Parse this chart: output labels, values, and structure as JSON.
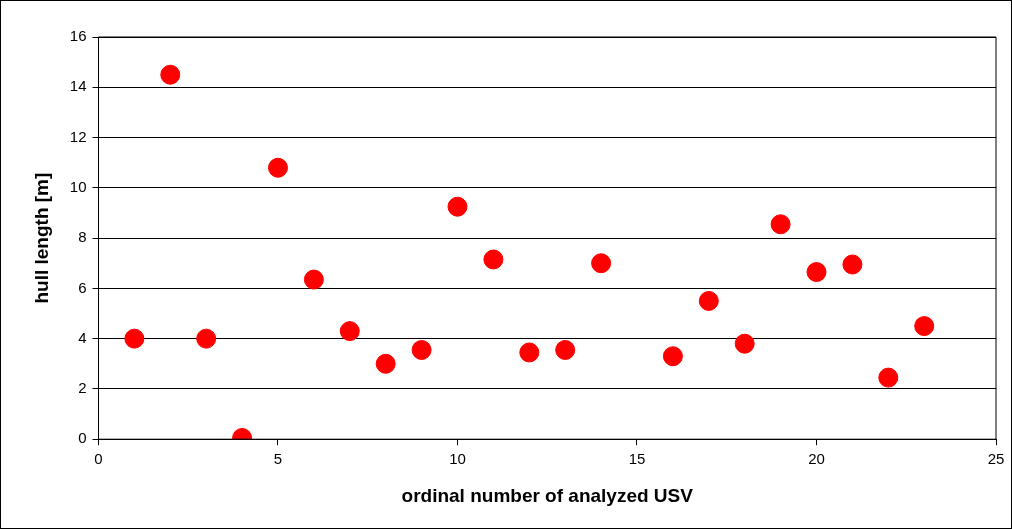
{
  "chart_data": {
    "type": "scatter",
    "xlabel": "ordinal number of analyzed USV",
    "ylabel": "hull length [m]",
    "x": [
      1,
      2,
      3,
      4,
      5,
      6,
      7,
      8,
      9,
      10,
      11,
      12,
      13,
      14,
      16,
      17,
      18,
      19,
      20,
      21,
      22,
      23
    ],
    "series": [
      {
        "color": "#ff0000",
        "values": [
          4.0,
          14.5,
          4.0,
          0.05,
          10.8,
          6.35,
          4.3,
          3.0,
          3.55,
          9.25,
          7.15,
          3.45,
          3.55,
          7.0,
          3.3,
          5.5,
          3.8,
          8.55,
          6.65,
          6.95,
          2.45,
          4.5
        ]
      }
    ],
    "xlim": [
      0,
      25
    ],
    "xticks": [
      0,
      5,
      10,
      15,
      20,
      25
    ],
    "ylim": [
      0,
      16
    ],
    "yticks": [
      0,
      2,
      4,
      6,
      8,
      10,
      12,
      14,
      16
    ],
    "grid": "y",
    "legend": false,
    "marker": "circle"
  }
}
